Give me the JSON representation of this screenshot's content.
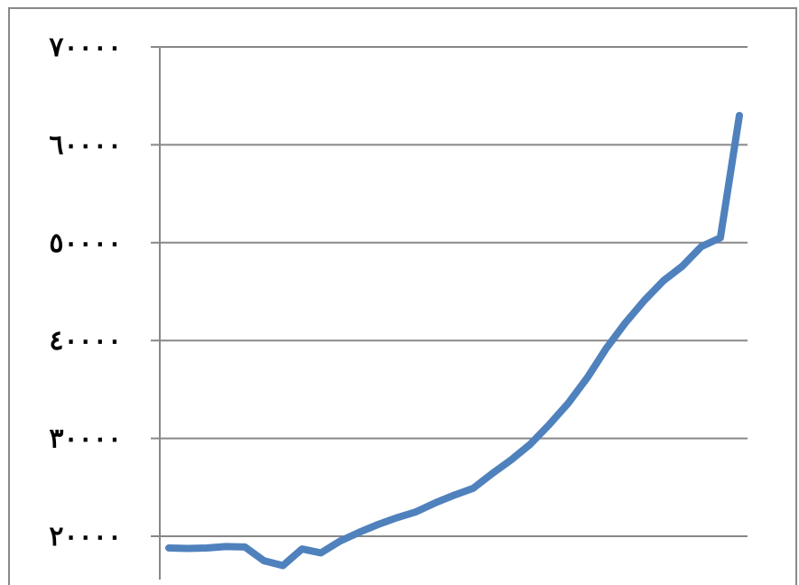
{
  "chart_data": {
    "type": "line",
    "title": "",
    "xlabel": "",
    "ylabel": "",
    "ylim": [
      20000,
      70000
    ],
    "yticks": [
      {
        "value": 70000,
        "label": "٧٠٠٠٠"
      },
      {
        "value": 60000,
        "label": "٦٠٠٠٠"
      },
      {
        "value": 50000,
        "label": "٥٠٠٠٠"
      },
      {
        "value": 40000,
        "label": "٤٠٠٠٠"
      },
      {
        "value": 30000,
        "label": "٣٠٠٠٠"
      },
      {
        "value": 20000,
        "label": "٢٠٠٠٠"
      }
    ],
    "grid": true,
    "legend": "none",
    "line_color": "#4F81BD",
    "series": [
      {
        "values": [
          18800,
          18750,
          18800,
          18950,
          18900,
          17500,
          17000,
          18700,
          18300,
          19500,
          20400,
          21200,
          21900,
          22500,
          23400,
          24200,
          24900,
          26400,
          27800,
          29400,
          31400,
          33600,
          36200,
          39200,
          41800,
          44100,
          46100,
          47600,
          49600,
          50500,
          63000
        ]
      }
    ]
  }
}
